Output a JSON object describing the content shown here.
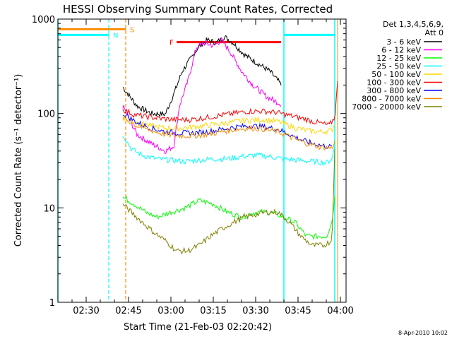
{
  "chart_data": {
    "type": "line",
    "title": "HESSI Observing Summary Count Rates, Corrected",
    "xlabel": "Start Time (21-Feb-03 02:20:42)",
    "ylabel": "Corrected Count Rate (s⁻¹ detector⁻¹)",
    "yscale": "log",
    "ylim": [
      1,
      1000
    ],
    "yticks": [
      1,
      10,
      100,
      1000
    ],
    "ytick_labels": [
      "1",
      "10",
      "100",
      "1000"
    ],
    "xlim": [
      "02:20",
      "04:02"
    ],
    "xticks": [
      "02:30",
      "02:45",
      "03:00",
      "03:15",
      "03:30",
      "03:45",
      "04:00"
    ],
    "grid": false,
    "legend_position": "right",
    "legend_header": [
      "Det 1,3,4,5,6,9,",
      "Att 0"
    ],
    "series": [
      {
        "name": "3 - 6 keV",
        "color": "#000000",
        "x": [
          "02:43",
          "02:48",
          "02:53",
          "02:58",
          "03:01",
          "03:04",
          "03:07",
          "03:10",
          "03:13",
          "03:16",
          "03:19",
          "03:22",
          "03:26",
          "03:30",
          "03:35",
          "03:38",
          "03:39"
        ],
        "y": [
          190,
          120,
          100,
          98,
          160,
          280,
          380,
          520,
          600,
          560,
          650,
          560,
          420,
          350,
          280,
          220,
          200
        ]
      },
      {
        "name": "6 - 12 keV",
        "color": "#ff00ff",
        "x": [
          "02:43",
          "02:48",
          "02:53",
          "02:58",
          "03:01",
          "03:03",
          "03:06",
          "03:09",
          "03:12",
          "03:15",
          "03:18",
          "03:21",
          "03:25",
          "03:29",
          "03:34",
          "03:38",
          "03:39"
        ],
        "y": [
          120,
          60,
          48,
          40,
          45,
          120,
          220,
          500,
          560,
          520,
          600,
          450,
          280,
          200,
          150,
          130,
          125
        ]
      },
      {
        "name": "12 - 25 keV",
        "color": "#00ff00",
        "x": [
          "02:43",
          "02:47",
          "02:51",
          "02:55",
          "03:00",
          "03:05",
          "03:10",
          "03:15",
          "03:20",
          "03:25",
          "03:30",
          "03:35",
          "03:40",
          "03:44",
          "03:48",
          "03:52",
          "03:55",
          "03:57",
          "03:58"
        ],
        "y": [
          13,
          11,
          9,
          8,
          9,
          10,
          12,
          11,
          9,
          8,
          9,
          9,
          8,
          7,
          5,
          5,
          5,
          7,
          13
        ]
      },
      {
        "name": "25 - 50 keV",
        "color": "#00ffff",
        "x": [
          "02:43",
          "02:46",
          "02:50",
          "02:55",
          "03:00",
          "03:05",
          "03:10",
          "03:15",
          "03:20",
          "03:25",
          "03:30",
          "03:35",
          "03:40",
          "03:45",
          "03:50",
          "03:55",
          "03:57",
          "03:58"
        ],
        "y": [
          60,
          42,
          36,
          33,
          32,
          31,
          32,
          33,
          33,
          35,
          36,
          35,
          33,
          32,
          31,
          30,
          33,
          45
        ]
      },
      {
        "name": "50 - 100 keV",
        "color": "#ffd700",
        "x": [
          "02:43",
          "02:48",
          "02:53",
          "02:58",
          "03:03",
          "03:08",
          "03:13",
          "03:18",
          "03:23",
          "03:28",
          "03:33",
          "03:38",
          "03:43",
          "03:48",
          "03:53",
          "03:57",
          "03:58"
        ],
        "y": [
          90,
          80,
          74,
          70,
          70,
          72,
          75,
          78,
          82,
          85,
          86,
          82,
          72,
          66,
          64,
          66,
          80
        ]
      },
      {
        "name": "100 - 300 keV",
        "color": "#ff0000",
        "x": [
          "02:43",
          "02:47",
          "02:52",
          "02:57",
          "03:02",
          "03:07",
          "03:12",
          "03:17",
          "03:22",
          "03:27",
          "03:32",
          "03:37",
          "03:42",
          "03:47",
          "03:52",
          "03:56",
          "03:58",
          "03:59"
        ],
        "y": [
          110,
          97,
          92,
          88,
          86,
          86,
          90,
          95,
          100,
          105,
          106,
          103,
          95,
          88,
          80,
          75,
          90,
          210
        ]
      },
      {
        "name": "300 - 800 keV",
        "color": "#0000ff",
        "x": [
          "02:43",
          "02:48",
          "02:53",
          "02:58",
          "03:03",
          "03:08",
          "03:13",
          "03:18",
          "03:23",
          "03:28",
          "03:33",
          "03:38",
          "03:43",
          "03:48",
          "03:53",
          "03:57"
        ],
        "y": [
          100,
          80,
          70,
          64,
          62,
          62,
          64,
          68,
          72,
          74,
          72,
          68,
          58,
          50,
          46,
          44
        ]
      },
      {
        "name": "800 - 7000 keV",
        "color": "#ff8c00",
        "x": [
          "02:43",
          "02:48",
          "02:53",
          "02:58",
          "03:03",
          "03:08",
          "03:13",
          "03:18",
          "03:23",
          "03:28",
          "03:33",
          "03:38",
          "03:43",
          "03:48",
          "03:53",
          "03:57",
          "03:58"
        ],
        "y": [
          90,
          74,
          66,
          60,
          58,
          58,
          60,
          64,
          68,
          70,
          68,
          64,
          55,
          48,
          44,
          43,
          50
        ]
      },
      {
        "name": "7000 - 20000 keV",
        "color": "#808000",
        "x": [
          "02:43",
          "02:46",
          "02:50",
          "02:54",
          "02:58",
          "03:02",
          "03:06",
          "03:10",
          "03:14",
          "03:18",
          "03:22",
          "03:26",
          "03:30",
          "03:34",
          "03:38",
          "03:42",
          "03:46",
          "03:50",
          "03:54",
          "03:57",
          "03:58"
        ],
        "y": [
          11,
          9,
          7,
          5.5,
          4.5,
          3.5,
          3.5,
          4,
          5,
          6,
          7,
          8,
          8.5,
          9,
          9,
          7,
          5,
          4,
          4,
          4.5,
          40
        ]
      }
    ],
    "annotations": [
      {
        "label": "S",
        "color": "#ff8c00",
        "x_line": "02:44",
        "bar_from": "02:20",
        "bar_to": "02:44",
        "bar_y": 780
      },
      {
        "label": "N",
        "color": "#00ffff",
        "x_line": "02:38",
        "bar_from": "02:20",
        "bar_to": "02:38",
        "bar_y": 680
      },
      {
        "label": "F",
        "color": "#ff0000",
        "bar_from": "03:02",
        "bar_to": "03:39",
        "bar_y": 570
      }
    ],
    "night_lines_cyan": [
      "02:20",
      "03:40",
      "03:58"
    ],
    "night_lines_orange": [
      "03:59"
    ],
    "night_bar_cyan_after": {
      "from": "03:40",
      "to": "03:58",
      "y": 680
    }
  },
  "footer": {
    "date_stamp": "8-Apr-2010 10:02"
  }
}
